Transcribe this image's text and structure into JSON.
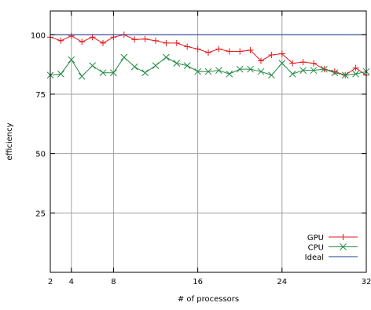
{
  "chart_data": {
    "type": "line",
    "title": "",
    "xlabel": "# of processors",
    "ylabel": "efficiency",
    "xlim": [
      2,
      32
    ],
    "ylim": [
      0,
      110
    ],
    "xticks": [
      2,
      4,
      8,
      16,
      24,
      32
    ],
    "yticks": [
      25,
      50,
      75,
      100
    ],
    "grid": true,
    "legend_position": "bottom-right",
    "series": [
      {
        "name": "GPU",
        "color": "#e41a1c",
        "marker": "plus",
        "x": [
          2,
          3,
          4,
          5,
          6,
          7,
          8,
          9,
          10,
          11,
          12,
          13,
          14,
          15,
          16,
          17,
          18,
          19,
          20,
          21,
          22,
          23,
          24,
          25,
          26,
          27,
          28,
          29,
          30,
          31,
          32
        ],
        "values": [
          99,
          97.5,
          99.5,
          97,
          99,
          96.5,
          99,
          100,
          98,
          98.2,
          97.5,
          96.5,
          96.5,
          95,
          94,
          92.5,
          94,
          93,
          93,
          93.5,
          89,
          91.5,
          92,
          88,
          88.5,
          88,
          85.5,
          84.5,
          83,
          86,
          83
        ]
      },
      {
        "name": "CPU",
        "color": "#238b45",
        "marker": "cross",
        "x": [
          2,
          3,
          4,
          5,
          6,
          7,
          8,
          9,
          10,
          11,
          12,
          13,
          14,
          15,
          16,
          17,
          18,
          19,
          20,
          21,
          22,
          23,
          24,
          25,
          26,
          27,
          28,
          29,
          30,
          31,
          32
        ],
        "values": [
          83,
          83.5,
          89.5,
          82.5,
          87,
          84,
          84,
          90.5,
          86.5,
          84,
          87,
          90.5,
          88,
          87,
          84.5,
          84.5,
          85,
          83.5,
          85.5,
          85.5,
          84.5,
          83,
          88,
          83.5,
          85,
          85,
          85.5,
          84,
          83,
          83.5,
          84.5
        ]
      },
      {
        "name": "Ideal",
        "color": "#1f3a93",
        "marker": "none",
        "x": [
          2,
          32
        ],
        "values": [
          100,
          100
        ]
      }
    ]
  }
}
